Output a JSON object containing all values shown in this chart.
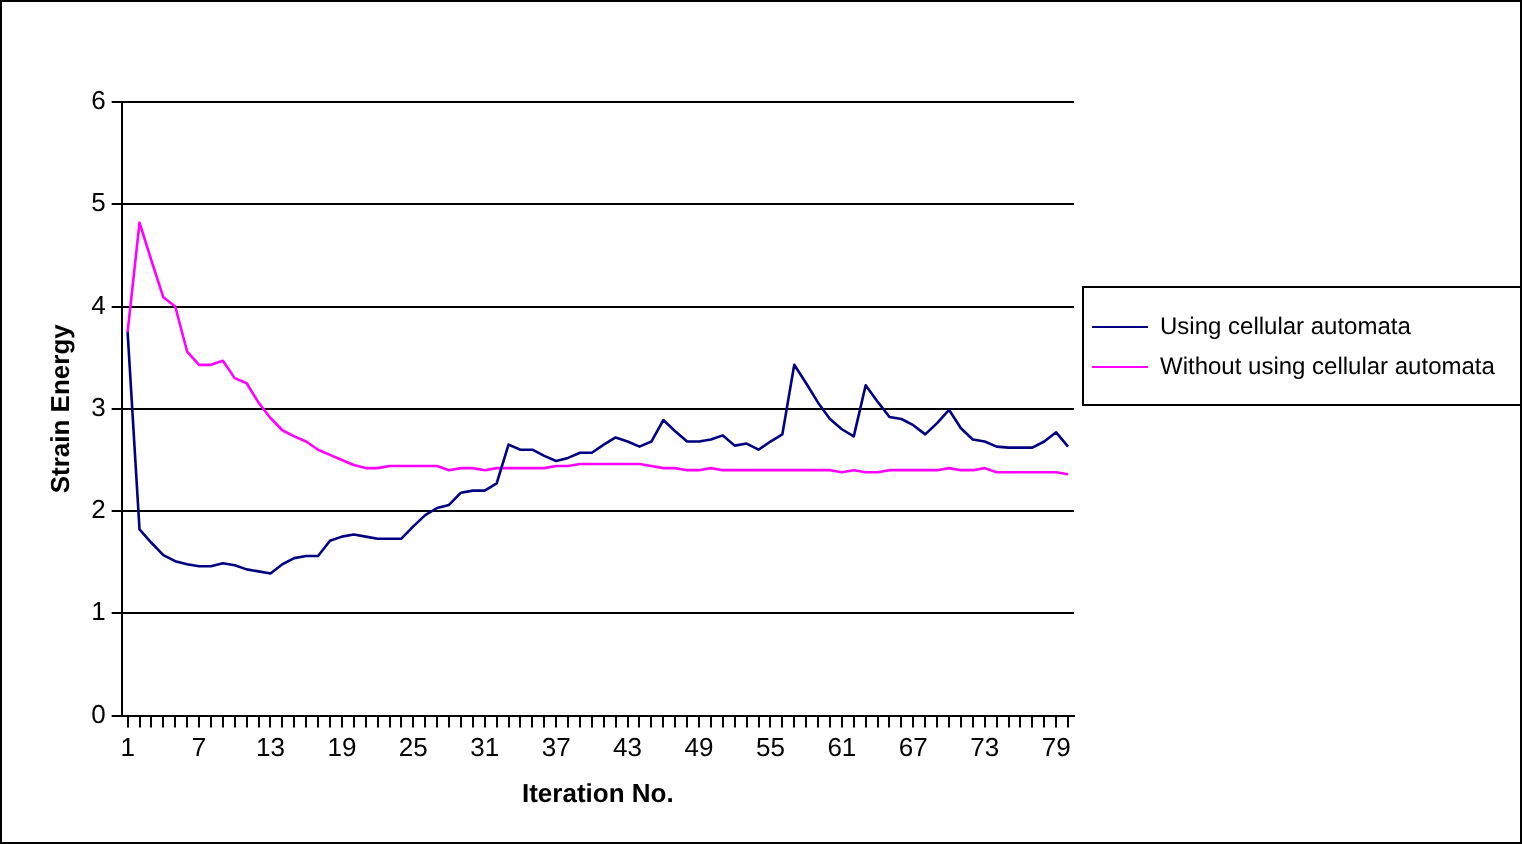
{
  "chart_data": {
    "type": "line",
    "xlabel": "Iteration No.",
    "ylabel": "Strain Energy",
    "categories": [
      "1",
      null,
      null,
      null,
      null,
      null,
      "7",
      null,
      null,
      null,
      null,
      null,
      "13",
      null,
      null,
      null,
      null,
      null,
      "19",
      null,
      null,
      null,
      null,
      null,
      "25",
      null,
      null,
      null,
      null,
      null,
      "31",
      null,
      null,
      null,
      null,
      null,
      "37",
      null,
      null,
      null,
      null,
      null,
      "43",
      null,
      null,
      null,
      null,
      null,
      "49",
      null,
      null,
      null,
      null,
      null,
      "55",
      null,
      null,
      null,
      null,
      null,
      "61",
      null,
      null,
      null,
      null,
      null,
      "67",
      null,
      null,
      null,
      null,
      null,
      "73",
      null,
      null,
      null,
      null,
      null,
      "79",
      null
    ],
    "series": [
      {
        "name": "Using cellular automata",
        "color": "#000080",
        "values": [
          3.75,
          1.82,
          1.69,
          1.57,
          1.51,
          1.48,
          1.46,
          1.46,
          1.49,
          1.47,
          1.43,
          1.41,
          1.39,
          1.48,
          1.54,
          1.56,
          1.56,
          1.71,
          1.75,
          1.77,
          1.75,
          1.73,
          1.73,
          1.73,
          1.85,
          1.96,
          2.03,
          2.06,
          2.18,
          2.2,
          2.2,
          2.27,
          2.65,
          2.6,
          2.6,
          2.54,
          2.49,
          2.52,
          2.57,
          2.57,
          2.65,
          2.72,
          2.68,
          2.63,
          2.68,
          2.89,
          2.78,
          2.68,
          2.68,
          2.7,
          2.74,
          2.64,
          2.66,
          2.6,
          2.68,
          2.75,
          3.43,
          3.25,
          3.06,
          2.9,
          2.8,
          2.73,
          3.23,
          3.07,
          2.92,
          2.9,
          2.84,
          2.75,
          2.86,
          2.99,
          2.81,
          2.7,
          2.68,
          2.63,
          2.62,
          2.62,
          2.62,
          2.68,
          2.77,
          2.63
        ]
      },
      {
        "name": "Without using cellular automata",
        "color": "#ff00ff",
        "values": [
          3.75,
          4.82,
          4.45,
          4.09,
          4.0,
          3.56,
          3.43,
          3.43,
          3.47,
          3.3,
          3.25,
          3.06,
          2.91,
          2.79,
          2.73,
          2.68,
          2.6,
          2.55,
          2.5,
          2.45,
          2.42,
          2.42,
          2.44,
          2.44,
          2.44,
          2.44,
          2.44,
          2.4,
          2.42,
          2.42,
          2.4,
          2.42,
          2.42,
          2.42,
          2.42,
          2.42,
          2.44,
          2.44,
          2.46,
          2.46,
          2.46,
          2.46,
          2.46,
          2.46,
          2.44,
          2.42,
          2.42,
          2.4,
          2.4,
          2.42,
          2.4,
          2.4,
          2.4,
          2.4,
          2.4,
          2.4,
          2.4,
          2.4,
          2.4,
          2.4,
          2.38,
          2.4,
          2.38,
          2.38,
          2.4,
          2.4,
          2.4,
          2.4,
          2.4,
          2.42,
          2.4,
          2.4,
          2.42,
          2.38,
          2.38,
          2.38,
          2.38,
          2.38,
          2.38,
          2.36
        ]
      }
    ],
    "ylim": [
      0,
      6
    ],
    "yticks": [
      0,
      1,
      2,
      3,
      4,
      5,
      6
    ],
    "grid": "y",
    "legend": "right",
    "marker": "none",
    "line_style": "solid"
  }
}
